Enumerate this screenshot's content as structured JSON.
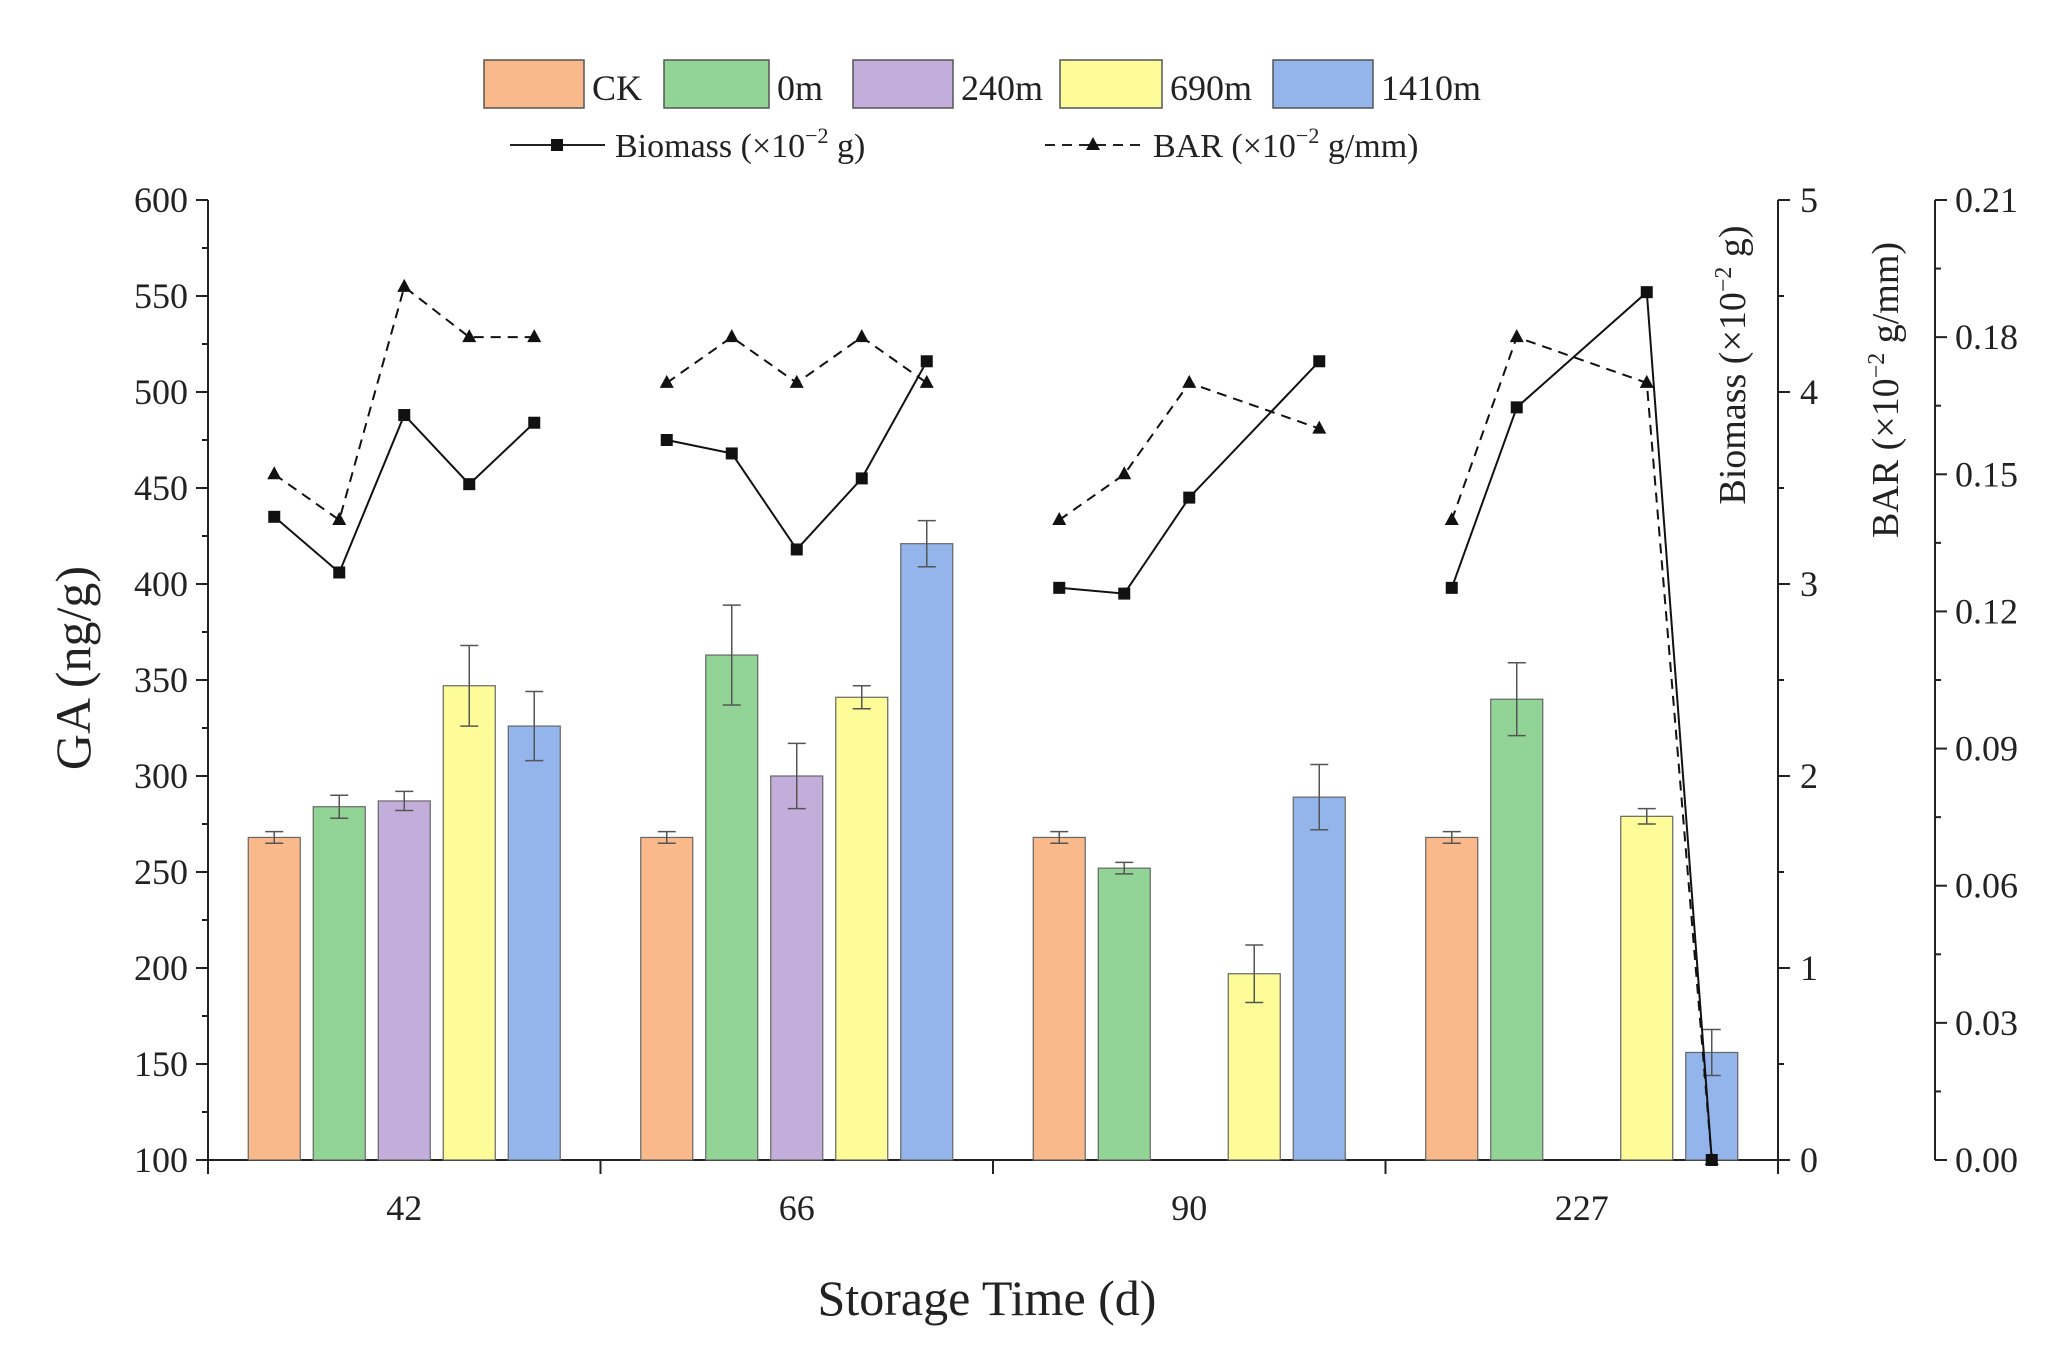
{
  "chart_data": {
    "type": "bar",
    "xlabel": "Storage Time (d)",
    "ylabel": "GA (ng/g)",
    "y2label_prefix": "Biomass (×10",
    "y2label_exp": "−2",
    "y2label_suffix": " g)",
    "y3label_prefix": "BAR (×10",
    "y3label_exp": "−2",
    "y3label_suffix": " g/mm)",
    "ylim": [
      100,
      600
    ],
    "y2lim": [
      0,
      5
    ],
    "y3lim": [
      0,
      0.21
    ],
    "y_ticks": [
      "100",
      "150",
      "200",
      "250",
      "300",
      "350",
      "400",
      "450",
      "500",
      "550",
      "600"
    ],
    "y2_ticks": [
      "0",
      "1",
      "2",
      "3",
      "4",
      "5"
    ],
    "y3_ticks": [
      "0.00",
      "0.03",
      "0.06",
      "0.09",
      "0.12",
      "0.15",
      "0.18",
      "0.21"
    ],
    "categories": [
      "42",
      "66",
      "90",
      "227"
    ],
    "treatments": [
      "CK",
      "0m",
      "240m",
      "690m",
      "1410m"
    ],
    "colors": [
      "#f9b98a",
      "#92d496",
      "#c3aedb",
      "#fdfc99",
      "#94b4ec"
    ],
    "series": [
      {
        "name": "CK",
        "values": [
          268,
          268,
          268,
          268
        ],
        "errors": [
          3,
          3,
          3,
          3
        ]
      },
      {
        "name": "0m",
        "values": [
          284,
          363,
          252,
          340
        ],
        "errors": [
          6,
          26,
          3,
          19
        ]
      },
      {
        "name": "240m",
        "values": [
          287,
          300,
          null,
          null
        ],
        "errors": [
          5,
          17,
          null,
          null
        ]
      },
      {
        "name": "690m",
        "values": [
          347,
          341,
          197,
          279
        ],
        "errors": [
          21,
          6,
          15,
          4
        ]
      },
      {
        "name": "1410m",
        "values": [
          326,
          421,
          289,
          156
        ],
        "errors": [
          18,
          12,
          17,
          12
        ]
      }
    ],
    "biomass": {
      "name": "Biomass (×10⁻² g)",
      "values": [
        [
          3.35,
          3.06,
          3.88,
          3.52,
          3.84
        ],
        [
          3.75,
          3.68,
          3.18,
          3.55,
          4.16
        ],
        [
          2.98,
          2.95,
          3.45,
          null,
          4.16
        ],
        [
          2.98,
          3.92,
          null,
          4.52,
          0.0
        ]
      ]
    },
    "bar_ratio": {
      "name": "BAR (×10⁻² g/mm)",
      "values": [
        [
          0.15,
          0.14,
          0.191,
          0.18,
          0.18
        ],
        [
          0.17,
          0.18,
          0.17,
          0.18,
          0.17
        ],
        [
          0.14,
          0.15,
          0.17,
          null,
          0.16
        ],
        [
          0.14,
          0.18,
          null,
          0.17,
          0.0
        ]
      ]
    }
  },
  "legend": {
    "items": [
      "CK",
      "0m",
      "240m",
      "690m",
      "1410m"
    ],
    "biomass_prefix": "Biomass (×10",
    "biomass_exp": "−2",
    "biomass_suffix": " g)",
    "bar_prefix": "BAR (×10",
    "bar_exp": "−2",
    "bar_suffix": " g/mm)"
  }
}
